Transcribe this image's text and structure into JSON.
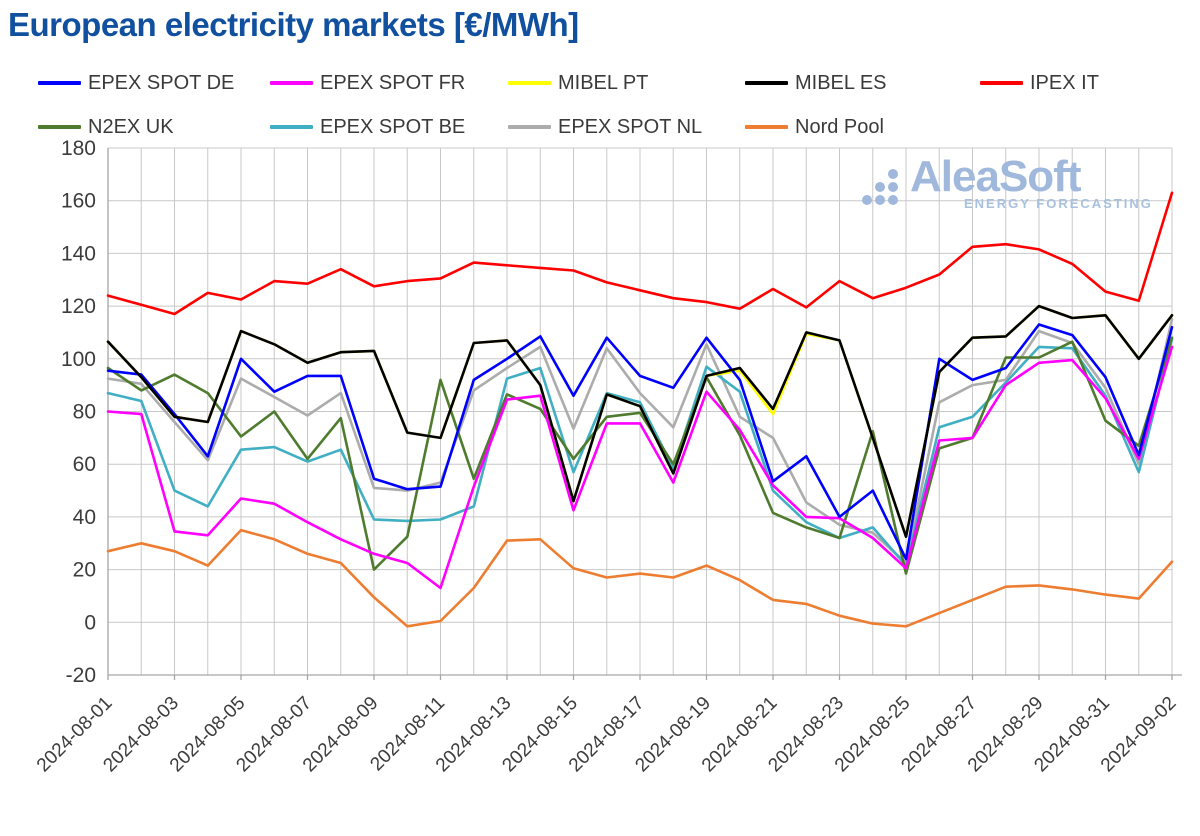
{
  "title": "European electricity markets [€/MWh]",
  "watermark": {
    "text": "AleaSoft",
    "subtext": "ENERGY FORECASTING",
    "color": "#9FB8DB"
  },
  "colors": {
    "title": "#10509E",
    "grid": "#C8C8C8",
    "spine": "#A6A6A6",
    "tick_text": "#3C3C3C"
  },
  "chart_data": {
    "type": "line",
    "title": "European electricity markets [€/MWh]",
    "xlabel": "",
    "ylabel": "",
    "ylim": [
      -20,
      180
    ],
    "ytick_step": 20,
    "grid": true,
    "legend_position": "top",
    "x_label_every_days": 2,
    "x": [
      "2024-08-01",
      "2024-08-02",
      "2024-08-03",
      "2024-08-04",
      "2024-08-05",
      "2024-08-06",
      "2024-08-07",
      "2024-08-08",
      "2024-08-09",
      "2024-08-10",
      "2024-08-11",
      "2024-08-12",
      "2024-08-13",
      "2024-08-14",
      "2024-08-15",
      "2024-08-16",
      "2024-08-17",
      "2024-08-18",
      "2024-08-19",
      "2024-08-20",
      "2024-08-21",
      "2024-08-22",
      "2024-08-23",
      "2024-08-24",
      "2024-08-25",
      "2024-08-26",
      "2024-08-27",
      "2024-08-28",
      "2024-08-29",
      "2024-08-30",
      "2024-08-31",
      "2024-09-01",
      "2024-09-02"
    ],
    "series": [
      {
        "name": "EPEX SPOT DE",
        "color": "#0000FF",
        "values": [
          95.5,
          94,
          79,
          63,
          100,
          87.5,
          93.5,
          93.5,
          54.5,
          50.5,
          51.5,
          92,
          100,
          108.5,
          86,
          108,
          93.5,
          89,
          108,
          92,
          53.5,
          63,
          40,
          50,
          24,
          100,
          92,
          96.5,
          113,
          109,
          93,
          63.5,
          112
        ]
      },
      {
        "name": "EPEX SPOT FR",
        "color": "#FF00FF",
        "values": [
          80,
          79,
          34.5,
          33,
          47,
          45,
          38,
          31.5,
          26,
          22.5,
          13,
          51.5,
          84.5,
          86,
          42.5,
          75.5,
          75.5,
          53,
          87.5,
          73,
          52,
          40,
          39.5,
          32,
          20.5,
          69,
          70,
          90,
          98.5,
          99.5,
          85,
          62,
          104.5
        ]
      },
      {
        "name": "MIBEL PT",
        "color": "#FFFF00",
        "values": [
          106.5,
          93,
          78,
          76,
          110.5,
          105.5,
          98.5,
          102.5,
          103,
          72,
          70,
          106,
          107,
          90,
          46,
          86.5,
          82,
          56.5,
          93.5,
          95.5,
          79,
          109.5,
          107,
          70,
          32.5,
          95,
          108,
          108.5,
          120,
          115.5,
          116.5,
          100,
          116.5
        ]
      },
      {
        "name": "MIBEL ES",
        "color": "#000000",
        "values": [
          106.5,
          93,
          78,
          76,
          110.5,
          105.5,
          98.5,
          102.5,
          103,
          72,
          70,
          106,
          107,
          90,
          46,
          86.5,
          82,
          56.5,
          93.5,
          96.5,
          81,
          110,
          107,
          70,
          32.5,
          95,
          108,
          108.5,
          120,
          115.5,
          116.5,
          100,
          116.5
        ]
      },
      {
        "name": "IPEX IT",
        "color": "#FF0000",
        "values": [
          124,
          120.5,
          117,
          125,
          122.5,
          129.5,
          128.5,
          134,
          127.5,
          129.5,
          130.5,
          136.5,
          135.5,
          134.5,
          133.5,
          129,
          126,
          123,
          121.5,
          119,
          126.5,
          119.5,
          129.5,
          123,
          127,
          132,
          142.5,
          143.5,
          141.5,
          136,
          125.5,
          122,
          163
        ]
      },
      {
        "name": "N2EX UK",
        "color": "#4E7B2D",
        "values": [
          96.5,
          88,
          94,
          87,
          70.5,
          80,
          62,
          77.5,
          20,
          32.5,
          92,
          54.5,
          86.5,
          81,
          62,
          78,
          79.5,
          60,
          93,
          71,
          41.5,
          36,
          32,
          72.5,
          18.5,
          66,
          70,
          100.5,
          100.5,
          106.5,
          76.5,
          67,
          108
        ]
      },
      {
        "name": "EPEX SPOT BE",
        "color": "#41AFC3",
        "values": [
          87,
          84,
          50,
          44,
          65.5,
          66.5,
          61,
          65.5,
          39,
          38.5,
          39,
          44,
          92.5,
          96.5,
          57,
          87,
          83.5,
          58.5,
          97,
          87.5,
          50,
          38,
          32,
          36,
          21.5,
          74,
          78,
          91,
          104.5,
          104,
          86,
          57,
          107.5
        ]
      },
      {
        "name": "EPEX SPOT NL",
        "color": "#ACACAC",
        "values": [
          92.5,
          90.5,
          76,
          61.5,
          92.5,
          85.5,
          78.5,
          87,
          51,
          50,
          53,
          88,
          96.5,
          104.5,
          73.5,
          104,
          87,
          74,
          105.5,
          78,
          70,
          45.5,
          37,
          34,
          22.5,
          83.5,
          90,
          92,
          110.5,
          106,
          89,
          60,
          115
        ]
      },
      {
        "name": "Nord Pool",
        "color": "#ED7D31",
        "values": [
          27,
          30,
          27,
          21.5,
          35,
          31.5,
          26,
          22.5,
          9.5,
          -1.5,
          0.5,
          13,
          31,
          31.5,
          20.5,
          17,
          18.5,
          17,
          21.5,
          16,
          8.5,
          7,
          2.5,
          -0.5,
          -1.5,
          3.5,
          8.5,
          13.5,
          14,
          12.5,
          10.5,
          9,
          23
        ]
      }
    ],
    "draw_order": [
      "Nord Pool",
      "EPEX SPOT NL",
      "EPEX SPOT BE",
      "N2EX UK",
      "EPEX SPOT FR",
      "MIBEL PT",
      "EPEX SPOT DE",
      "MIBEL ES",
      "IPEX IT"
    ]
  }
}
